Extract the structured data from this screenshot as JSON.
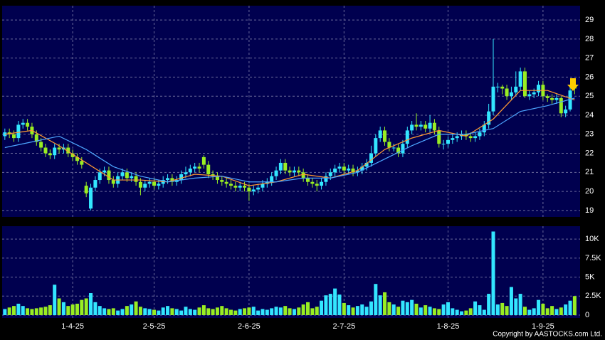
{
  "chart_data": {
    "type": "candlestick",
    "xlim": [
      -0.6,
      127.2
    ],
    "xticks": [
      {
        "value": 15,
        "label": "1-4-25"
      },
      {
        "value": 33,
        "label": "2-5-25"
      },
      {
        "value": 54,
        "label": "2-6-25"
      },
      {
        "value": 75,
        "label": "2-7-25"
      },
      {
        "value": 98,
        "label": "1-8-25"
      },
      {
        "value": 119,
        "label": "1-9-25"
      }
    ],
    "ylim": [
      18.66,
      29.75
    ],
    "yticks": [
      19,
      20,
      21,
      22,
      23,
      24,
      25,
      26,
      27,
      28,
      29
    ],
    "grid": true,
    "up_color": "#33e6ff",
    "down_color": "#99ee22",
    "open": [
      22.9,
      23.1,
      23.0,
      22.8,
      23.5,
      23.6,
      23.4,
      23.0,
      22.6,
      22.3,
      22.0,
      21.9,
      22.3,
      22.2,
      22.3,
      22.0,
      21.8,
      21.6,
      20.3,
      19.1,
      20.2,
      20.6,
      21.0,
      21.1,
      20.6,
      20.4,
      20.8,
      21.0,
      20.7,
      20.8,
      20.5,
      20.2,
      20.4,
      20.5,
      20.3,
      20.4,
      20.6,
      20.7,
      20.5,
      20.6,
      20.9,
      21.0,
      21.2,
      21.3,
      21.8,
      21.4,
      20.9,
      20.8,
      20.6,
      20.5,
      20.4,
      20.3,
      20.2,
      20.3,
      20.2,
      20.0,
      20.1,
      20.2,
      20.4,
      20.5,
      20.8,
      21.1,
      21.5,
      21.1,
      21.0,
      21.1,
      21.0,
      20.7,
      20.5,
      20.4,
      20.3,
      20.5,
      20.8,
      21.0,
      21.2,
      21.3,
      21.1,
      21.2,
      21.0,
      21.1,
      21.3,
      21.5,
      22.0,
      22.8,
      23.2,
      22.6,
      22.3,
      22.3,
      22.0,
      22.5,
      23.2,
      23.5,
      23.4,
      23.5,
      23.3,
      23.6,
      23.2,
      22.5,
      22.5,
      22.7,
      22.8,
      22.9,
      23.0,
      22.9,
      22.8,
      22.9,
      23.1,
      23.5,
      24.2,
      25.5,
      25.5,
      25.4,
      25.0,
      25.2,
      25.5,
      26.3,
      25.0,
      25.1,
      25.2,
      25.6,
      25.0,
      24.9,
      24.8,
      24.9,
      24.1,
      24.3,
      25.6
    ],
    "high": [
      23.3,
      23.3,
      23.2,
      23.7,
      23.8,
      23.8,
      23.6,
      23.2,
      22.8,
      22.5,
      22.2,
      22.5,
      22.5,
      22.5,
      22.5,
      22.2,
      22.0,
      21.8,
      20.5,
      20.4,
      20.8,
      21.2,
      21.3,
      21.3,
      20.8,
      21.0,
      21.2,
      21.2,
      21.0,
      21.0,
      20.7,
      20.6,
      20.7,
      20.7,
      20.6,
      20.8,
      20.9,
      20.9,
      20.8,
      21.1,
      21.3,
      21.4,
      21.5,
      21.5,
      21.9,
      21.6,
      21.1,
      21.0,
      20.8,
      20.7,
      20.6,
      20.5,
      20.5,
      20.5,
      20.4,
      20.3,
      20.4,
      20.6,
      20.7,
      21.0,
      21.3,
      21.7,
      21.7,
      21.3,
      21.3,
      21.3,
      21.2,
      20.9,
      20.7,
      20.6,
      20.7,
      21.0,
      21.2,
      21.4,
      21.5,
      21.5,
      21.4,
      21.4,
      21.3,
      21.5,
      21.7,
      22.4,
      23.0,
      23.4,
      23.4,
      22.8,
      22.5,
      22.5,
      22.7,
      23.4,
      23.7,
      24.1,
      23.7,
      23.7,
      24.0,
      23.8,
      23.4,
      22.7,
      22.9,
      23.0,
      23.1,
      23.2,
      23.2,
      23.1,
      23.1,
      23.3,
      23.7,
      24.6,
      28.0,
      25.7,
      25.6,
      25.6,
      25.5,
      26.3,
      26.5,
      26.5,
      25.3,
      25.4,
      25.8,
      25.8,
      25.1,
      25.1,
      25.1,
      25.0,
      24.5,
      25.5,
      25.8
    ],
    "low": [
      22.7,
      22.8,
      22.6,
      22.6,
      23.3,
      23.2,
      22.8,
      22.4,
      22.1,
      21.8,
      21.7,
      21.7,
      22.0,
      22.0,
      21.8,
      21.6,
      21.4,
      21.2,
      19.7,
      19.0,
      20.0,
      20.4,
      20.8,
      20.4,
      20.2,
      20.2,
      20.6,
      20.5,
      20.5,
      20.3,
      19.8,
      20.0,
      20.2,
      20.1,
      20.1,
      20.2,
      20.4,
      20.3,
      20.3,
      20.4,
      20.7,
      20.8,
      21.0,
      21.0,
      21.2,
      20.7,
      20.6,
      20.4,
      20.3,
      20.2,
      20.1,
      20.0,
      20.0,
      20.0,
      19.5,
      19.8,
      19.9,
      20.0,
      20.2,
      20.3,
      20.6,
      20.9,
      20.9,
      20.8,
      20.8,
      20.8,
      20.5,
      20.3,
      20.2,
      20.0,
      20.1,
      20.3,
      20.6,
      20.8,
      21.0,
      20.9,
      20.9,
      20.8,
      20.8,
      20.9,
      21.1,
      21.3,
      21.8,
      22.6,
      22.4,
      22.1,
      22.1,
      21.8,
      21.8,
      22.3,
      23.0,
      23.2,
      23.2,
      23.1,
      23.1,
      23.0,
      22.3,
      22.2,
      22.3,
      22.5,
      22.6,
      22.7,
      22.7,
      22.6,
      22.6,
      22.7,
      22.9,
      23.3,
      24.0,
      25.2,
      25.1,
      24.8,
      24.8,
      25.0,
      25.3,
      24.9,
      24.8,
      24.9,
      25.0,
      24.8,
      24.7,
      24.6,
      24.6,
      23.9,
      23.9,
      24.2,
      25.1
    ],
    "close": [
      23.1,
      23.0,
      22.8,
      23.5,
      23.6,
      23.4,
      23.0,
      22.6,
      22.3,
      22.0,
      21.9,
      22.3,
      22.2,
      22.3,
      22.0,
      21.8,
      21.6,
      21.4,
      19.9,
      20.2,
      20.6,
      21.0,
      21.1,
      20.6,
      20.4,
      20.8,
      21.0,
      20.7,
      20.8,
      20.5,
      20.2,
      20.4,
      20.5,
      20.3,
      20.4,
      20.6,
      20.7,
      20.5,
      20.6,
      20.9,
      21.0,
      21.2,
      21.3,
      21.2,
      21.4,
      20.9,
      20.8,
      20.6,
      20.5,
      20.4,
      20.3,
      20.2,
      20.3,
      20.2,
      20.0,
      20.1,
      20.2,
      20.4,
      20.5,
      20.8,
      21.1,
      21.5,
      21.1,
      21.0,
      21.1,
      21.0,
      20.7,
      20.5,
      20.4,
      20.3,
      20.5,
      20.8,
      21.0,
      21.2,
      21.3,
      21.1,
      21.2,
      21.0,
      21.1,
      21.3,
      21.5,
      22.0,
      22.8,
      23.2,
      22.6,
      22.3,
      22.3,
      22.0,
      22.5,
      23.2,
      23.5,
      23.4,
      23.5,
      23.3,
      23.6,
      23.2,
      22.5,
      22.5,
      22.7,
      22.8,
      22.9,
      23.0,
      22.9,
      22.8,
      22.9,
      23.1,
      23.5,
      24.2,
      25.5,
      25.5,
      25.4,
      25.0,
      25.2,
      25.5,
      26.3,
      25.0,
      25.1,
      25.2,
      25.6,
      25.0,
      24.9,
      24.8,
      24.9,
      24.1,
      24.3,
      25.3,
      25.4
    ],
    "moving_averages": [
      {
        "color": "#ff9933",
        "x": [
          0,
          6,
          12,
          18,
          24,
          30,
          36,
          42,
          48,
          54,
          60,
          66,
          72,
          78,
          84,
          90,
          96,
          102,
          108,
          114,
          120,
          126
        ],
        "values": [
          23.0,
          23.2,
          22.4,
          21.5,
          20.6,
          20.6,
          20.5,
          20.9,
          20.8,
          20.3,
          20.5,
          20.9,
          20.7,
          21.1,
          22.2,
          22.8,
          23.2,
          22.9,
          23.8,
          25.3,
          25.3,
          24.8
        ]
      },
      {
        "color": "#4da6ff",
        "x": [
          0,
          6,
          12,
          18,
          24,
          30,
          36,
          42,
          48,
          54,
          60,
          66,
          72,
          78,
          84,
          90,
          96,
          102,
          108,
          114,
          120,
          126
        ],
        "values": [
          22.3,
          22.6,
          22.9,
          22.2,
          21.3,
          20.8,
          20.5,
          20.7,
          20.8,
          20.5,
          20.5,
          20.7,
          20.7,
          21.0,
          21.7,
          22.4,
          23.0,
          23.0,
          23.3,
          24.2,
          24.5,
          24.9
        ]
      }
    ],
    "volume": {
      "ylim": [
        0,
        11700
      ],
      "yticks": [
        0,
        {
          "value": 2500,
          "label": "2.5K"
        },
        {
          "value": 5000,
          "label": "5K"
        },
        {
          "value": 7500,
          "label": "7.5K"
        },
        {
          "value": 10000,
          "label": "10K"
        }
      ],
      "values": [
        800,
        1000,
        1200,
        1500,
        1200,
        900,
        800,
        900,
        1000,
        1100,
        1300,
        4000,
        2200,
        1700,
        1200,
        1400,
        1500,
        2000,
        2200,
        2900,
        1700,
        1200,
        900,
        800,
        900,
        600,
        800,
        1200,
        1400,
        1800,
        1100,
        900,
        800,
        700,
        600,
        1000,
        1200,
        900,
        800,
        600,
        1100,
        800,
        700,
        1000,
        1300,
        900,
        800,
        1000,
        1200,
        900,
        700,
        600,
        800,
        900,
        1000,
        1100,
        600,
        800,
        700,
        900,
        1100,
        1000,
        1200,
        900,
        800,
        1000,
        1400,
        1700,
        900,
        1100,
        1900,
        2600,
        2800,
        3500,
        2700,
        1600,
        1300,
        1000,
        1200,
        1400,
        1100,
        1800,
        4100,
        2600,
        3000,
        1700,
        1400,
        1100,
        1900,
        1700,
        2000,
        1500,
        1000,
        1300,
        1100,
        900,
        800,
        1400,
        1700,
        900,
        700,
        500,
        600,
        900,
        1800,
        1300,
        700,
        2800,
        11000,
        1400,
        1600,
        1200,
        3700,
        2200,
        2800,
        1100,
        700,
        900,
        2000,
        1500,
        900,
        1200,
        800,
        1000,
        1400,
        1900,
        2500
      ]
    },
    "copyright": "Copyright by AASTOCKS.com Ltd."
  }
}
